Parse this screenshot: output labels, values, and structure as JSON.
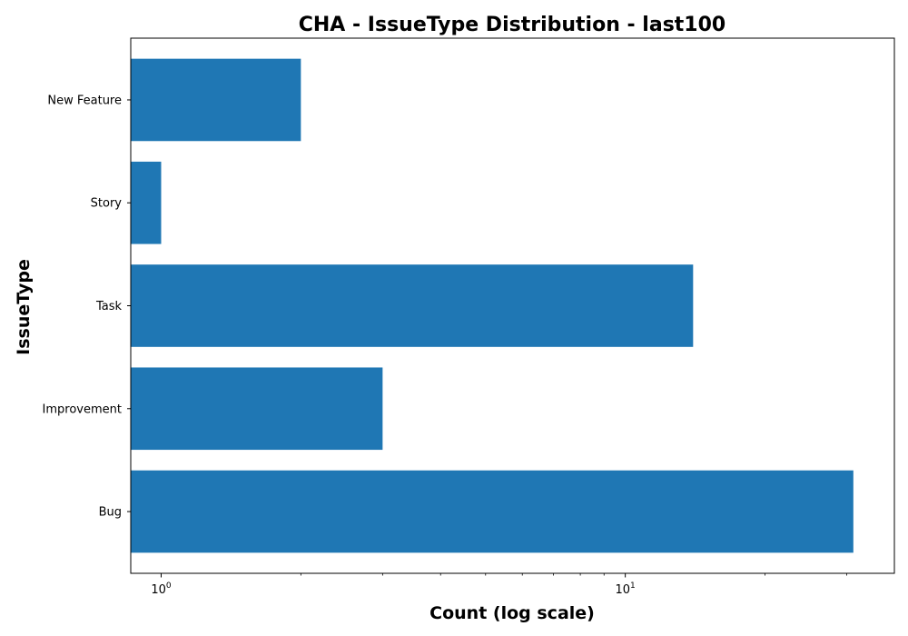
{
  "chart_data": {
    "type": "bar",
    "orientation": "horizontal",
    "title": "CHA - IssueType Distribution - last100",
    "xlabel": "Count (log scale)",
    "ylabel": "IssueType",
    "x_scale": "log",
    "xlim": [
      0.86,
      38
    ],
    "categories": [
      "Bug",
      "Improvement",
      "Task",
      "Story",
      "New Feature"
    ],
    "values": [
      31,
      3,
      14,
      1,
      2
    ],
    "bar_color": "#1f77b4",
    "grid": false,
    "legend": "none",
    "major_ticks": [
      {
        "value": 1,
        "base": "10",
        "exp": "0"
      },
      {
        "value": 10,
        "base": "10",
        "exp": "1"
      }
    ],
    "minor_ticks": [
      2,
      3,
      4,
      5,
      6,
      7,
      8,
      9,
      20,
      30
    ]
  }
}
